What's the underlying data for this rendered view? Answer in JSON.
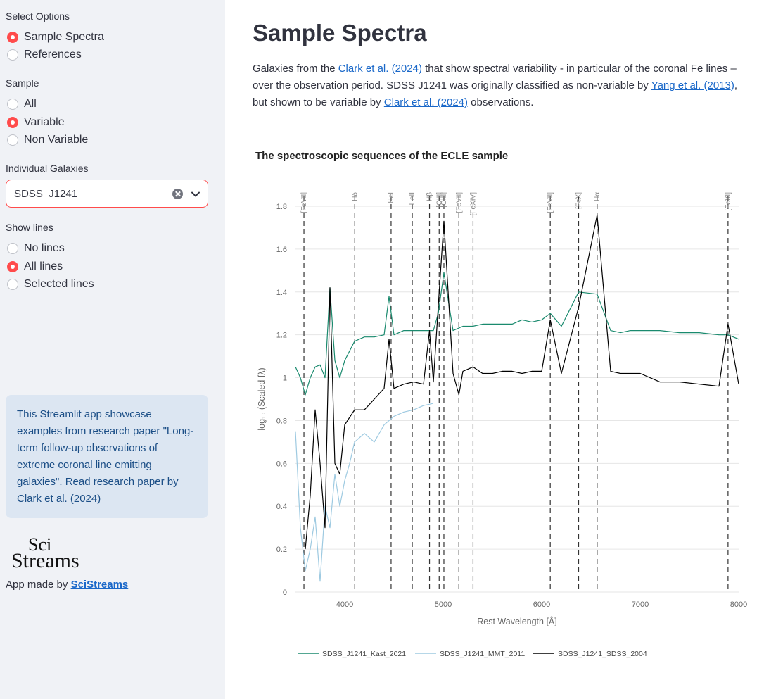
{
  "sidebar": {
    "select_options": {
      "label": "Select Options",
      "options": [
        "Sample Spectra",
        "References"
      ],
      "selected": 0
    },
    "sample": {
      "label": "Sample",
      "options": [
        "All",
        "Variable",
        "Non Variable"
      ],
      "selected": 1
    },
    "individual_galaxies": {
      "label": "Individual Galaxies",
      "value": "SDSS_J1241"
    },
    "show_lines": {
      "label": "Show lines",
      "options": [
        "No lines",
        "All lines",
        "Selected lines"
      ],
      "selected": 1
    },
    "info": {
      "text": "This Streamlit app showcase examples from research paper \"Long-term follow-up observations of extreme coronal line emitting galaxies\". Read research paper by ",
      "link": "Clark et al. (2024)"
    },
    "logo": {
      "line1": "Sci",
      "line2": "Streams"
    },
    "made_by": {
      "text": "App made by ",
      "link": "SciStreams"
    }
  },
  "main": {
    "title": "Sample Spectra",
    "desc": {
      "p1": "Galaxies from the ",
      "link1": "Clark et al. (2024)",
      "p2": " that show spectral variability - in particular of the coronal Fe lines – over the observation period. SDSS J1241 was originally classified as non-variable by ",
      "link2": "Yang et al. (2013)",
      "p3": ", but shown to be variable by ",
      "link3": "Clark et al. (2024)",
      "p4": " observations."
    }
  },
  "chart_data": {
    "type": "line",
    "title": "The spectroscopic sequences of the ECLE sample",
    "xlabel": "Rest Wavelength [Å]",
    "ylabel": "log₁₀ (Scaled fλ)",
    "xlim": [
      3500,
      8000
    ],
    "ylim": [
      0,
      1.8
    ],
    "xticks": [
      4000,
      5000,
      6000,
      7000,
      8000
    ],
    "yticks": [
      0,
      0.2,
      0.4,
      0.6,
      0.8,
      1,
      1.2,
      1.4,
      1.6,
      1.8
    ],
    "grid": true,
    "legend_position": "bottom",
    "lines": [
      {
        "label": "[FeVII]",
        "x": 3586
      },
      {
        "label": "Hδ",
        "x": 4102
      },
      {
        "label": "HeI",
        "x": 4471
      },
      {
        "label": "HeII",
        "x": 4686
      },
      {
        "label": "Hβ",
        "x": 4861
      },
      {
        "label": "[OIII]",
        "x": 4959
      },
      {
        "label": "[OIII]",
        "x": 5007
      },
      {
        "label": "[FeVII]",
        "x": 5159
      },
      {
        "label": "[FeXIV]",
        "x": 5303
      },
      {
        "label": "[FeVII]",
        "x": 6087
      },
      {
        "label": "[FeX]",
        "x": 6375
      },
      {
        "label": "Hα",
        "x": 6563
      },
      {
        "label": "[FeXI]",
        "x": 7892
      }
    ],
    "series": [
      {
        "name": "SDSS_J1241_Kast_2021",
        "color": "#1a8a6e",
        "x": [
          3500,
          3550,
          3600,
          3650,
          3700,
          3750,
          3800,
          3850,
          3900,
          3950,
          4000,
          4100,
          4200,
          4300,
          4400,
          4450,
          4500,
          4600,
          4700,
          4800,
          4900,
          4950,
          5007,
          5100,
          5200,
          5300,
          5400,
          5500,
          5600,
          5700,
          5800,
          5900,
          6000,
          6087,
          6200,
          6375,
          6563,
          6700,
          6800,
          6900,
          7000,
          7200,
          7400,
          7600,
          7800,
          7892,
          8000
        ],
        "y": [
          1.05,
          1.0,
          0.92,
          1.0,
          1.05,
          1.06,
          1.0,
          1.42,
          1.08,
          1.0,
          1.08,
          1.17,
          1.19,
          1.19,
          1.2,
          1.38,
          1.2,
          1.22,
          1.22,
          1.22,
          1.22,
          1.3,
          1.49,
          1.22,
          1.24,
          1.24,
          1.25,
          1.25,
          1.25,
          1.25,
          1.27,
          1.26,
          1.27,
          1.3,
          1.24,
          1.4,
          1.39,
          1.22,
          1.21,
          1.22,
          1.22,
          1.22,
          1.21,
          1.21,
          1.2,
          1.2,
          1.18
        ]
      },
      {
        "name": "SDSS_J1241_MMT_2011",
        "color": "#9ecae1",
        "x": [
          3500,
          3550,
          3600,
          3650,
          3700,
          3750,
          3800,
          3850,
          3900,
          3950,
          4000,
          4050,
          4100,
          4150,
          4200,
          4300,
          4400,
          4500,
          4600,
          4700,
          4800,
          4900
        ],
        "y": [
          0.75,
          0.3,
          0.1,
          0.2,
          0.35,
          0.05,
          0.4,
          0.3,
          0.55,
          0.4,
          0.52,
          0.6,
          0.7,
          0.72,
          0.74,
          0.7,
          0.78,
          0.82,
          0.84,
          0.85,
          0.87,
          0.88
        ]
      },
      {
        "name": "SDSS_J1241_SDSS_2004",
        "color": "#000000",
        "x": [
          3600,
          3650,
          3700,
          3750,
          3800,
          3850,
          3900,
          3950,
          4000,
          4100,
          4200,
          4300,
          4400,
          4450,
          4500,
          4600,
          4700,
          4800,
          4861,
          4900,
          4959,
          5007,
          5100,
          5159,
          5200,
          5303,
          5400,
          5500,
          5600,
          5700,
          5800,
          5900,
          6000,
          6087,
          6200,
          6375,
          6563,
          6700,
          6800,
          6900,
          7000,
          7200,
          7400,
          7600,
          7800,
          7892,
          8000
        ],
        "y": [
          0.2,
          0.45,
          0.85,
          0.6,
          0.3,
          1.42,
          0.6,
          0.55,
          0.78,
          0.85,
          0.85,
          0.9,
          0.95,
          1.18,
          0.95,
          0.97,
          0.98,
          0.97,
          1.22,
          0.98,
          1.4,
          1.73,
          1.02,
          0.92,
          1.03,
          1.05,
          1.02,
          1.02,
          1.03,
          1.03,
          1.02,
          1.03,
          1.03,
          1.27,
          1.02,
          1.33,
          1.76,
          1.03,
          1.02,
          1.02,
          1.02,
          0.98,
          0.98,
          0.97,
          0.96,
          1.25,
          0.97
        ]
      }
    ]
  }
}
